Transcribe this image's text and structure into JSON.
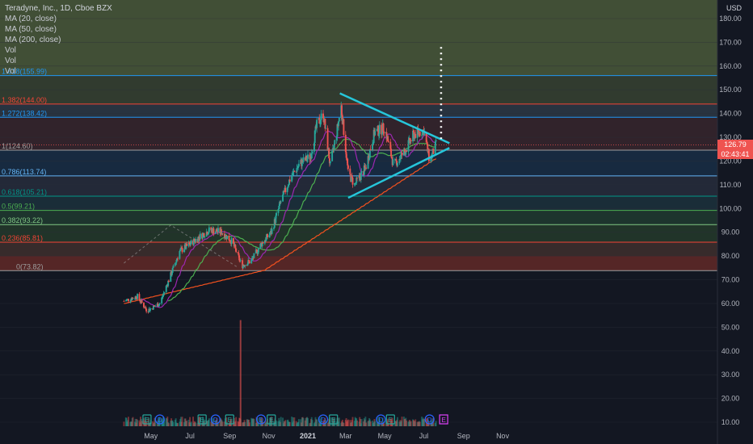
{
  "symbol_title": "Teradyne, Inc., 1D, Cboe BZX",
  "indicators": [
    "MA (20, close)",
    "MA (50, close)",
    "MA (200, close)",
    "Vol",
    "Vol",
    "Vol"
  ],
  "currency": "USD",
  "current_price": "126.79",
  "countdown": "02:43:41",
  "colors": {
    "background": "#131722",
    "up": "#26a69a",
    "down": "#ef5350",
    "ma20": "#9c27b0",
    "ma50": "#4caf50",
    "ma200": "#f4511e",
    "triangle": "#26c6da",
    "price_tag": "#ef5350"
  },
  "chart_data": {
    "type": "candlestick",
    "x_ticks": [
      "May",
      "Jul",
      "Sep",
      "Nov",
      "2021",
      "Mar",
      "May",
      "Jul",
      "Sep",
      "Nov"
    ],
    "y_ticks": [
      10,
      20,
      30,
      40,
      50,
      60,
      70,
      80,
      90,
      100,
      110,
      120,
      130,
      140,
      150,
      160,
      170,
      180
    ],
    "y_range": [
      8,
      188
    ],
    "fib_levels": [
      {
        "label": "0(73.82)",
        "value": 73.82,
        "color": "#9e9e9e",
        "fill": "#7a2121"
      },
      {
        "label": "0.236(85.81)",
        "value": 85.81,
        "color": "#f44336",
        "fill": "#553d33"
      },
      {
        "label": "0.382(93.22)",
        "value": 93.22,
        "color": "#81c784",
        "fill": "#2e4d2f"
      },
      {
        "label": "0.5(99.21)",
        "value": 99.21,
        "color": "#4caf50",
        "fill": "#264d36"
      },
      {
        "label": "0.618(105.21)",
        "value": 105.21,
        "color": "#009688",
        "fill": "#203f4a"
      },
      {
        "label": "0.786(113.74)",
        "value": 113.74,
        "color": "#64b5f6",
        "fill": "#31394a"
      },
      {
        "label": "1(124.60)",
        "value": 124.6,
        "color": "#9e9e9e",
        "fill": "#1c3a5a"
      },
      {
        "label": "1.272(138.42)",
        "value": 138.42,
        "color": "#2196f3",
        "fill": "#4a2d33"
      },
      {
        "label": "1.382(144.00)",
        "value": 144.0,
        "color": "#f44336",
        "fill": "#3b4b5a"
      },
      {
        "label": "1.618(155.99)",
        "value": 155.99,
        "color": "#2196f3",
        "fill": "#4a5a3b"
      }
    ],
    "event_markers": [
      "E",
      "D",
      "E",
      "D",
      "E",
      "D",
      "E",
      "D",
      "E",
      "D",
      "E",
      "D",
      "E"
    ],
    "triangle": {
      "upper": [
        [
          "Feb 20 2021",
          148.5
        ],
        [
          "Aug 10 2021",
          127.5
        ]
      ],
      "lower": [
        [
          "Mar 05 2021",
          104.5
        ],
        [
          "Aug 10 2021",
          125.5
        ]
      ],
      "projection_top": 168
    },
    "price_path": [
      [
        "Mar 20 2020",
        61
      ],
      [
        "Apr 10 2020",
        63
      ],
      [
        "Apr 25 2020",
        57
      ],
      [
        "May 15 2020",
        60
      ],
      [
        "Jun 01 2020",
        72
      ],
      [
        "Jun 15 2020",
        82
      ],
      [
        "Jul 01 2020",
        85
      ],
      [
        "Jul 15 2020",
        88
      ],
      [
        "Aug 01 2020",
        91
      ],
      [
        "Aug 20 2020",
        90
      ],
      [
        "Sep 05 2020",
        86
      ],
      [
        "Sep 20 2020",
        76
      ],
      [
        "Oct 05 2020",
        78
      ],
      [
        "Oct 20 2020",
        85
      ],
      [
        "Nov 05 2020",
        90
      ],
      [
        "Nov 20 2020",
        103
      ],
      [
        "Dec 05 2020",
        113
      ],
      [
        "Dec 20 2020",
        119
      ],
      [
        "Jan 05 2021",
        122
      ],
      [
        "Jan 15 2021",
        135
      ],
      [
        "Jan 25 2021",
        140
      ],
      [
        "Feb 05 2021",
        118
      ],
      [
        "Feb 15 2021",
        132
      ],
      [
        "Feb 22 2021",
        143
      ],
      [
        "Mar 05 2021",
        115
      ],
      [
        "Mar 15 2021",
        110
      ],
      [
        "Apr 01 2021",
        117
      ],
      [
        "Apr 15 2021",
        132
      ],
      [
        "May 01 2021",
        134
      ],
      [
        "May 15 2021",
        118
      ],
      [
        "Jun 01 2021",
        124
      ],
      [
        "Jun 15 2021",
        131
      ],
      [
        "Jul 01 2021",
        133
      ],
      [
        "Jul 10 2021",
        120
      ],
      [
        "Jul 20 2021",
        126.79
      ]
    ]
  }
}
